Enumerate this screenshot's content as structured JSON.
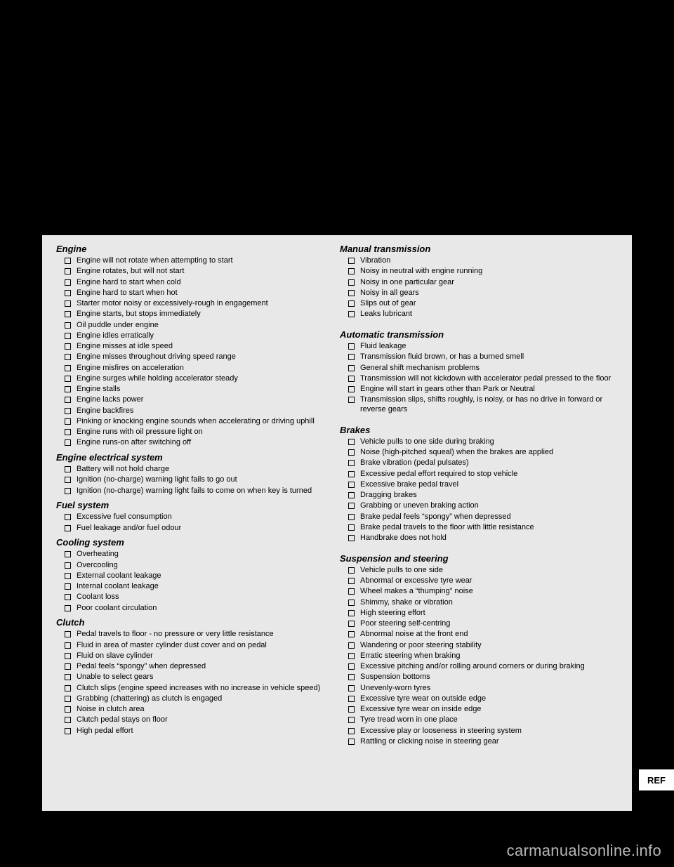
{
  "colors": {
    "page_bg": "#000000",
    "box_bg": "#e8e8e8",
    "text": "#000000",
    "tab_bg": "#ffffff",
    "watermark": "#b8b8b8"
  },
  "typography": {
    "body_font": "Arial",
    "title_size_pt": 13,
    "item_size_pt": 11
  },
  "tab_label": "REF",
  "watermark_text": "carmanualsonline.info",
  "left": [
    {
      "title": "Engine",
      "first": true,
      "items": [
        "Engine will not rotate when attempting to start",
        "Engine rotates, but will not start",
        "Engine hard to start when cold",
        "Engine hard to start when hot",
        "Starter motor noisy or excessively-rough in engagement",
        "Engine starts, but stops immediately",
        "Oil puddle under engine",
        "Engine idles erratically",
        "Engine misses at idle speed",
        "Engine misses throughout driving speed range",
        "Engine misfires on acceleration",
        "Engine surges while holding accelerator steady",
        "Engine stalls",
        "Engine lacks power",
        "Engine backfires",
        "Pinking or knocking engine sounds when accelerating or driving uphill",
        "Engine runs with oil pressure light on",
        "Engine runs-on after switching off"
      ]
    },
    {
      "title": "Engine electrical system",
      "items": [
        "Battery will not hold charge",
        "Ignition (no-charge) warning light fails to go out",
        "Ignition (no-charge) warning light fails to come on when key is turned"
      ]
    },
    {
      "title": "Fuel system",
      "items": [
        "Excessive fuel consumption",
        "Fuel leakage and/or fuel odour"
      ]
    },
    {
      "title": "Cooling system",
      "items": [
        "Overheating",
        "Overcooling",
        "External coolant leakage",
        "Internal coolant leakage",
        "Coolant loss",
        "Poor coolant circulation"
      ]
    },
    {
      "title": "Clutch",
      "items": [
        "Pedal travels to floor - no pressure or very little resistance",
        "Fluid in area of master cylinder dust cover and on pedal",
        "Fluid on slave cylinder",
        "Pedal feels “spongy” when depressed",
        "Unable to select gears",
        "Clutch slips (engine speed increases with no increase in vehicle speed)",
        "Grabbing (chattering) as clutch is engaged",
        "Noise in clutch area",
        "Clutch pedal stays on floor",
        "High pedal effort"
      ]
    }
  ],
  "right": [
    {
      "title": "Manual transmission",
      "first": true,
      "items": [
        "Vibration",
        "Noisy in neutral with engine running",
        "Noisy in one particular gear",
        "Noisy in all gears",
        "Slips out of gear",
        "Leaks lubricant"
      ]
    },
    {
      "title": "Automatic transmission",
      "gap": true,
      "items": [
        "Fluid leakage",
        "Transmission fluid brown, or has a burned smell",
        "General shift mechanism problems",
        "Transmission will not kickdown with accelerator pedal pressed to the floor",
        "Engine will start in gears other than Park or Neutral",
        "Transmission slips, shifts roughly, is noisy, or has no drive in forward or reverse gears"
      ]
    },
    {
      "title": "Brakes",
      "gap": true,
      "items": [
        "Vehicle pulls to one side during braking",
        "Noise (high-pitched squeal) when the brakes are applied",
        "Brake vibration (pedal pulsates)",
        "Excessive pedal effort required to stop vehicle",
        "Excessive brake pedal travel",
        "Dragging brakes",
        "Grabbing or uneven braking action",
        "Brake pedal feels “spongy” when depressed",
        "Brake pedal travels to the floor with little resistance",
        "Handbrake does not hold"
      ]
    },
    {
      "title": "Suspension and steering",
      "gap": true,
      "items": [
        "Vehicle pulls to one side",
        "Abnormal or excessive tyre wear",
        "Wheel makes a “thumping” noise",
        "Shimmy, shake or vibration",
        "High steering effort",
        "Poor steering self-centring",
        "Abnormal noise at the front end",
        "Wandering or poor steering stability",
        "Erratic steering when braking",
        "Excessive pitching and/or rolling around corners or during braking",
        "Suspension bottoms",
        "Unevenly-worn tyres",
        "Excessive tyre wear on outside edge",
        "Excessive tyre wear on inside edge",
        "Tyre tread worn in one place",
        "Excessive play or looseness in steering system",
        "Rattling or clicking noise in steering gear"
      ]
    }
  ]
}
